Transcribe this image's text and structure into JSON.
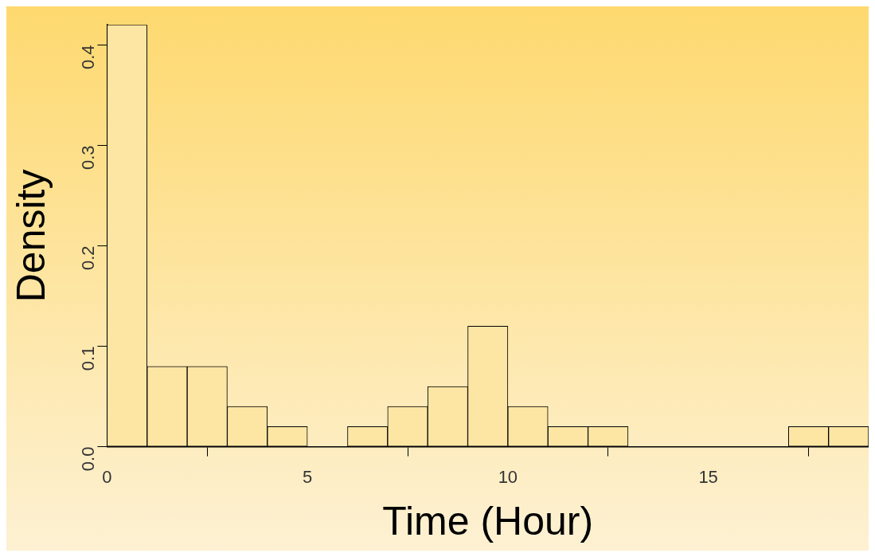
{
  "chart_data": {
    "type": "histogram",
    "xlabel": "Time (Hour)",
    "ylabel": "Density",
    "bins": [
      0,
      1,
      2,
      3,
      4,
      5,
      6,
      7,
      8,
      9,
      10,
      11,
      12,
      13,
      14,
      15,
      16,
      17,
      18,
      19
    ],
    "values": [
      0.42,
      0.08,
      0.08,
      0.04,
      0.02,
      0,
      0.02,
      0.04,
      0.06,
      0.12,
      0.04,
      0.02,
      0.02,
      0,
      0,
      0,
      0,
      0.02,
      0.02
    ],
    "color": "#fde6a4",
    "xlim": [
      0,
      19
    ],
    "xticks": [
      0,
      5,
      10,
      15
    ],
    "ylim": [
      0,
      0.42
    ],
    "yticks": [
      {
        "value": 0,
        "label": "0.0"
      },
      {
        "value": 0.1,
        "label": "0.1"
      },
      {
        "value": 0.2,
        "label": "0.2"
      },
      {
        "value": 0.3,
        "label": "0.3"
      },
      {
        "value": 0.4,
        "label": "0.4"
      }
    ],
    "grid": false
  }
}
